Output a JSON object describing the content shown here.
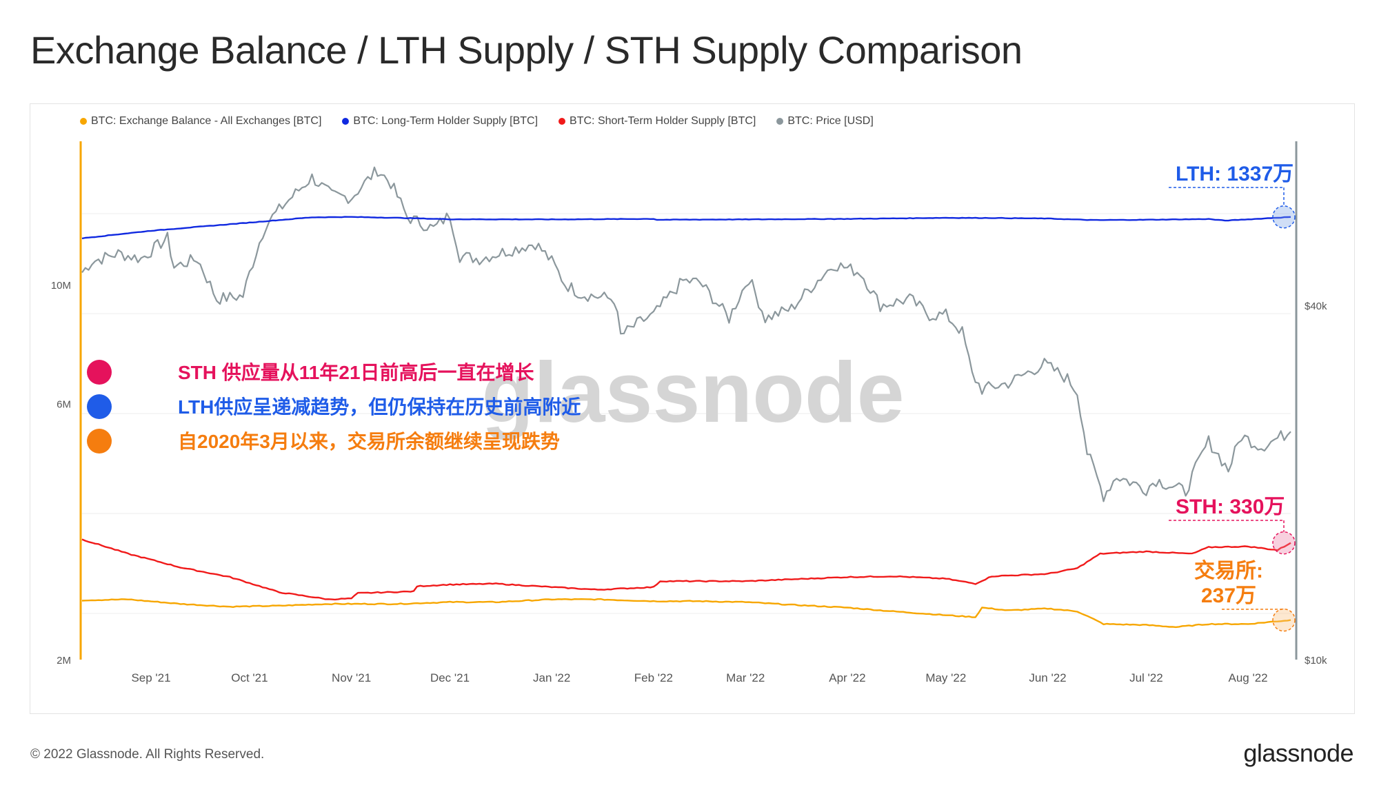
{
  "title": "Exchange Balance / LTH Supply / STH Supply Comparison",
  "footer": {
    "copyright": "© 2022 Glassnode. All Rights Reserved.",
    "logo": "glassnode"
  },
  "watermark": "glassnode",
  "chart_data": {
    "type": "line",
    "legend": [
      {
        "name": "BTC: Exchange Balance - All Exchanges [BTC]",
        "color": "#f7a600"
      },
      {
        "name": "BTC: Long-Term Holder Supply [BTC]",
        "color": "#1029e0"
      },
      {
        "name": "BTC: Short-Term Holder Supply [BTC]",
        "color": "#f01a1a"
      },
      {
        "name": "BTC: Price [USD]",
        "color": "#8b979c"
      }
    ],
    "x_range": [
      "2021-08-11",
      "2022-08-14"
    ],
    "x_ticks": [
      {
        "date": "2021-09-01",
        "label": "Sep '21"
      },
      {
        "date": "2021-10-01",
        "label": "Oct '21"
      },
      {
        "date": "2021-11-01",
        "label": "Nov '21"
      },
      {
        "date": "2021-12-01",
        "label": "Dec '21"
      },
      {
        "date": "2022-01-01",
        "label": "Jan '22"
      },
      {
        "date": "2022-02-01",
        "label": "Feb '22"
      },
      {
        "date": "2022-03-01",
        "label": "Mar '22"
      },
      {
        "date": "2022-04-01",
        "label": "Apr '22"
      },
      {
        "date": "2022-05-01",
        "label": "May '22"
      },
      {
        "date": "2022-06-01",
        "label": "Jun '22"
      },
      {
        "date": "2022-07-01",
        "label": "Jul '22"
      },
      {
        "date": "2022-08-01",
        "label": "Aug '22"
      }
    ],
    "y_left": {
      "scale": "log",
      "range": [
        2000000,
        18500000
      ],
      "ticks": [
        {
          "value": 2000000,
          "label": "2M"
        },
        {
          "value": 6000000,
          "label": "6M"
        },
        {
          "value": 10000000,
          "label": "10M"
        }
      ]
    },
    "y_right": {
      "scale": "log",
      "range": [
        10000,
        76000
      ],
      "ticks": [
        {
          "value": 10000,
          "label": "$10k"
        },
        {
          "value": 40000,
          "label": "$40k"
        }
      ]
    },
    "grid": true,
    "series": [
      {
        "name": "BTC: Long-Term Holder Supply [BTC]",
        "axis": "left",
        "color": "#1029e0",
        "points": [
          [
            "2021-08-11",
            12200000
          ],
          [
            "2021-09-01",
            12600000
          ],
          [
            "2021-10-01",
            13050000
          ],
          [
            "2021-10-20",
            13350000
          ],
          [
            "2021-11-01",
            13370000
          ],
          [
            "2021-11-15",
            13320000
          ],
          [
            "2021-12-01",
            13240000
          ],
          [
            "2022-01-01",
            13230000
          ],
          [
            "2022-02-01",
            13260000
          ],
          [
            "2022-02-02",
            13210000
          ],
          [
            "2022-03-01",
            13230000
          ],
          [
            "2022-04-01",
            13260000
          ],
          [
            "2022-05-01",
            13320000
          ],
          [
            "2022-05-15",
            13310000
          ],
          [
            "2022-06-01",
            13280000
          ],
          [
            "2022-06-15",
            13190000
          ],
          [
            "2022-07-01",
            13210000
          ],
          [
            "2022-07-20",
            13250000
          ],
          [
            "2022-07-25",
            13160000
          ],
          [
            "2022-08-14",
            13370000
          ]
        ]
      },
      {
        "name": "BTC: Short-Term Holder Supply [BTC]",
        "axis": "left",
        "color": "#f01a1a",
        "points": [
          [
            "2021-08-11",
            3350000
          ],
          [
            "2021-08-25",
            3150000
          ],
          [
            "2021-09-10",
            2970000
          ],
          [
            "2021-09-25",
            2850000
          ],
          [
            "2021-10-10",
            2670000
          ],
          [
            "2021-10-25",
            2590000
          ],
          [
            "2021-11-01",
            2600000
          ],
          [
            "2021-11-03",
            2660000
          ],
          [
            "2021-11-20",
            2680000
          ],
          [
            "2021-11-21",
            2740000
          ],
          [
            "2021-12-01",
            2760000
          ],
          [
            "2021-12-15",
            2770000
          ],
          [
            "2022-01-01",
            2730000
          ],
          [
            "2022-01-15",
            2700000
          ],
          [
            "2022-02-01",
            2730000
          ],
          [
            "2022-02-03",
            2800000
          ],
          [
            "2022-03-01",
            2800000
          ],
          [
            "2022-04-01",
            2850000
          ],
          [
            "2022-04-15",
            2860000
          ],
          [
            "2022-05-01",
            2830000
          ],
          [
            "2022-05-10",
            2770000
          ],
          [
            "2022-05-15",
            2860000
          ],
          [
            "2022-06-01",
            2890000
          ],
          [
            "2022-06-10",
            2960000
          ],
          [
            "2022-06-17",
            3150000
          ],
          [
            "2022-07-01",
            3180000
          ],
          [
            "2022-07-15",
            3150000
          ],
          [
            "2022-07-20",
            3240000
          ],
          [
            "2022-08-01",
            3250000
          ],
          [
            "2022-08-10",
            3200000
          ],
          [
            "2022-08-14",
            3300000
          ]
        ]
      },
      {
        "name": "BTC: Exchange Balance - All Exchanges [BTC]",
        "axis": "left",
        "color": "#f7a600",
        "points": [
          [
            "2021-08-11",
            2580000
          ],
          [
            "2021-08-25",
            2590000
          ],
          [
            "2021-09-10",
            2540000
          ],
          [
            "2021-09-25",
            2510000
          ],
          [
            "2021-10-10",
            2520000
          ],
          [
            "2021-10-25",
            2540000
          ],
          [
            "2021-11-15",
            2540000
          ],
          [
            "2021-12-01",
            2560000
          ],
          [
            "2021-12-15",
            2560000
          ],
          [
            "2022-01-01",
            2590000
          ],
          [
            "2022-01-15",
            2590000
          ],
          [
            "2022-02-01",
            2570000
          ],
          [
            "2022-02-15",
            2570000
          ],
          [
            "2022-03-01",
            2560000
          ],
          [
            "2022-03-15",
            2530000
          ],
          [
            "2022-04-01",
            2500000
          ],
          [
            "2022-04-15",
            2460000
          ],
          [
            "2022-05-01",
            2420000
          ],
          [
            "2022-05-10",
            2400000
          ],
          [
            "2022-05-12",
            2500000
          ],
          [
            "2022-05-20",
            2470000
          ],
          [
            "2022-06-01",
            2490000
          ],
          [
            "2022-06-10",
            2460000
          ],
          [
            "2022-06-18",
            2330000
          ],
          [
            "2022-07-01",
            2320000
          ],
          [
            "2022-07-10",
            2300000
          ],
          [
            "2022-07-20",
            2330000
          ],
          [
            "2022-08-01",
            2330000
          ],
          [
            "2022-08-14",
            2370000
          ]
        ]
      },
      {
        "name": "BTC: Price [USD]",
        "axis": "right",
        "color": "#8b979c",
        "points": [
          [
            "2021-08-11",
            45500
          ],
          [
            "2021-08-14",
            47500
          ],
          [
            "2021-08-22",
            49000
          ],
          [
            "2021-08-29",
            48000
          ],
          [
            "2021-09-06",
            52000
          ],
          [
            "2021-09-08",
            46500
          ],
          [
            "2021-09-15",
            48000
          ],
          [
            "2021-09-21",
            41000
          ],
          [
            "2021-09-29",
            41500
          ],
          [
            "2021-10-06",
            55000
          ],
          [
            "2021-10-15",
            62000
          ],
          [
            "2021-10-20",
            66000
          ],
          [
            "2021-10-26",
            61500
          ],
          [
            "2021-11-01",
            61000
          ],
          [
            "2021-11-09",
            68000
          ],
          [
            "2021-11-13",
            64500
          ],
          [
            "2021-11-18",
            56500
          ],
          [
            "2021-11-26",
            54000
          ],
          [
            "2021-12-01",
            57000
          ],
          [
            "2021-12-04",
            48500
          ],
          [
            "2021-12-10",
            48000
          ],
          [
            "2021-12-27",
            51000
          ],
          [
            "2022-01-01",
            47500
          ],
          [
            "2022-01-05",
            43500
          ],
          [
            "2022-01-10",
            41800
          ],
          [
            "2022-01-20",
            41000
          ],
          [
            "2022-01-22",
            35500
          ],
          [
            "2022-01-28",
            37500
          ],
          [
            "2022-02-01",
            38500
          ],
          [
            "2022-02-10",
            44000
          ],
          [
            "2022-02-15",
            43800
          ],
          [
            "2022-02-24",
            38000
          ],
          [
            "2022-03-02",
            44500
          ],
          [
            "2022-03-07",
            38000
          ],
          [
            "2022-03-15",
            39500
          ],
          [
            "2022-03-28",
            47000
          ],
          [
            "2022-04-05",
            45500
          ],
          [
            "2022-04-11",
            40000
          ],
          [
            "2022-04-20",
            41000
          ],
          [
            "2022-04-26",
            38500
          ],
          [
            "2022-05-01",
            38500
          ],
          [
            "2022-05-06",
            36000
          ],
          [
            "2022-05-09",
            30500
          ],
          [
            "2022-05-12",
            28800
          ],
          [
            "2022-05-20",
            29500
          ],
          [
            "2022-05-31",
            31800
          ],
          [
            "2022-06-07",
            30000
          ],
          [
            "2022-06-10",
            28500
          ],
          [
            "2022-06-13",
            22500
          ],
          [
            "2022-06-18",
            19000
          ],
          [
            "2022-06-22",
            20500
          ],
          [
            "2022-07-01",
            19500
          ],
          [
            "2022-07-04",
            20200
          ],
          [
            "2022-07-13",
            19300
          ],
          [
            "2022-07-20",
            23500
          ],
          [
            "2022-07-26",
            21000
          ],
          [
            "2022-07-30",
            24000
          ],
          [
            "2022-08-05",
            23000
          ],
          [
            "2022-08-14",
            24400
          ]
        ]
      }
    ],
    "annotations": [
      {
        "text": "LTH: 1337万",
        "color": "#1f5ce8",
        "series": "BTC: Long-Term Holder Supply [BTC]"
      },
      {
        "text": "STH: 330万",
        "color": "#e5125c",
        "series": "BTC: Short-Term Holder Supply [BTC]"
      },
      {
        "text": "交易所:",
        "text2": "237万",
        "color": "#f57d0f",
        "series": "BTC: Exchange Balance - All Exchanges [BTC]"
      }
    ],
    "notes": [
      {
        "text": "STH 供应量从11年21日前高后一直在增长",
        "color": "#e5125c"
      },
      {
        "text": "LTH供应呈递减趋势，但仍保持在历史前高附近",
        "color": "#1f5ce8"
      },
      {
        "text": "自2020年3月以来，交易所余额继续呈现跌势",
        "color": "#f57d0f"
      }
    ]
  }
}
